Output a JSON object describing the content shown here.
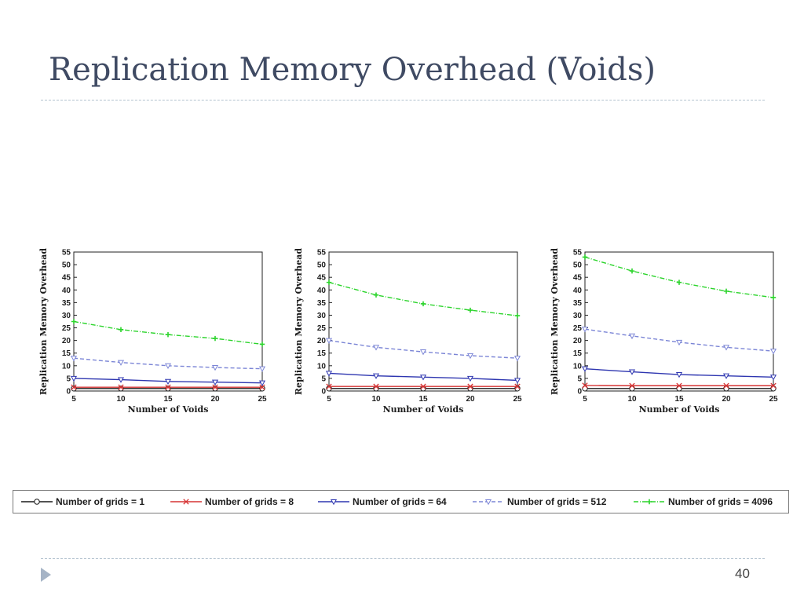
{
  "slide": {
    "title": "Replication Memory Overhead (Voids)",
    "page_number": "40",
    "footer_icon": "triangle-bullet-icon"
  },
  "legend": [
    {
      "label": "Number of grids = 1",
      "color": "#1a1a1a",
      "marker": "circle",
      "dash": "solid"
    },
    {
      "label": "Number of grids = 8",
      "color": "#d63434",
      "marker": "x",
      "dash": "solid"
    },
    {
      "label": "Number of grids = 64",
      "color": "#2e36b0",
      "marker": "triangle-down",
      "dash": "solid"
    },
    {
      "label": "Number of grids = 512",
      "color": "#7b85d6",
      "marker": "triangle-down",
      "dash": "dashed"
    },
    {
      "label": "Number of grids = 4096",
      "color": "#2bd42b",
      "marker": "plus",
      "dash": "dashdot"
    }
  ],
  "chart_data": [
    {
      "type": "line",
      "xlabel": "Number of Voids",
      "ylabel": "Replication Memory Overhead",
      "x": [
        5,
        10,
        15,
        20,
        25
      ],
      "xlim": [
        5,
        25
      ],
      "ylim": [
        0,
        55
      ],
      "yticks": [
        0,
        5,
        10,
        15,
        20,
        25,
        30,
        35,
        40,
        45,
        50,
        55
      ],
      "series": [
        {
          "name": "Number of grids = 1",
          "values": [
            1,
            1,
            1,
            1,
            1
          ]
        },
        {
          "name": "Number of grids = 8",
          "values": [
            1.5,
            1.5,
            1.5,
            1.5,
            1.5
          ]
        },
        {
          "name": "Number of grids = 64",
          "values": [
            5,
            4.5,
            3.8,
            3.5,
            3.2
          ]
        },
        {
          "name": "Number of grids = 512",
          "values": [
            13,
            11.3,
            10,
            9.3,
            8.8
          ]
        },
        {
          "name": "Number of grids = 4096",
          "values": [
            27.5,
            24.3,
            22.3,
            20.8,
            18.5
          ]
        }
      ]
    },
    {
      "type": "line",
      "xlabel": "Number of Voids",
      "ylabel": "Replication Memory Overhead",
      "x": [
        5,
        10,
        15,
        20,
        25
      ],
      "xlim": [
        5,
        25
      ],
      "ylim": [
        0,
        55
      ],
      "yticks": [
        0,
        5,
        10,
        15,
        20,
        25,
        30,
        35,
        40,
        45,
        50,
        55
      ],
      "series": [
        {
          "name": "Number of grids = 1",
          "values": [
            1,
            1,
            1,
            1,
            1
          ]
        },
        {
          "name": "Number of grids = 8",
          "values": [
            1.8,
            1.8,
            1.8,
            1.8,
            1.8
          ]
        },
        {
          "name": "Number of grids = 64",
          "values": [
            7,
            6,
            5.5,
            5,
            4.2
          ]
        },
        {
          "name": "Number of grids = 512",
          "values": [
            20,
            17.3,
            15.5,
            14,
            13
          ]
        },
        {
          "name": "Number of grids = 4096",
          "values": [
            43,
            38,
            34.5,
            32,
            29.8
          ]
        }
      ]
    },
    {
      "type": "line",
      "xlabel": "Number of Voids",
      "ylabel": "Replication Memory Overhead",
      "x": [
        5,
        10,
        15,
        20,
        25
      ],
      "xlim": [
        5,
        25
      ],
      "ylim": [
        0,
        55
      ],
      "yticks": [
        0,
        5,
        10,
        15,
        20,
        25,
        30,
        35,
        40,
        45,
        50,
        55
      ],
      "series": [
        {
          "name": "Number of grids = 1",
          "values": [
            1,
            1,
            1,
            1,
            1
          ]
        },
        {
          "name": "Number of grids = 8",
          "values": [
            2.2,
            2.1,
            2.1,
            2.1,
            2.1
          ]
        },
        {
          "name": "Number of grids = 64",
          "values": [
            8.8,
            7.6,
            6.5,
            6,
            5.5
          ]
        },
        {
          "name": "Number of grids = 512",
          "values": [
            24.5,
            21.8,
            19.3,
            17.3,
            15.8
          ]
        },
        {
          "name": "Number of grids = 4096",
          "values": [
            53,
            47.5,
            43,
            39.5,
            37
          ]
        }
      ]
    }
  ]
}
